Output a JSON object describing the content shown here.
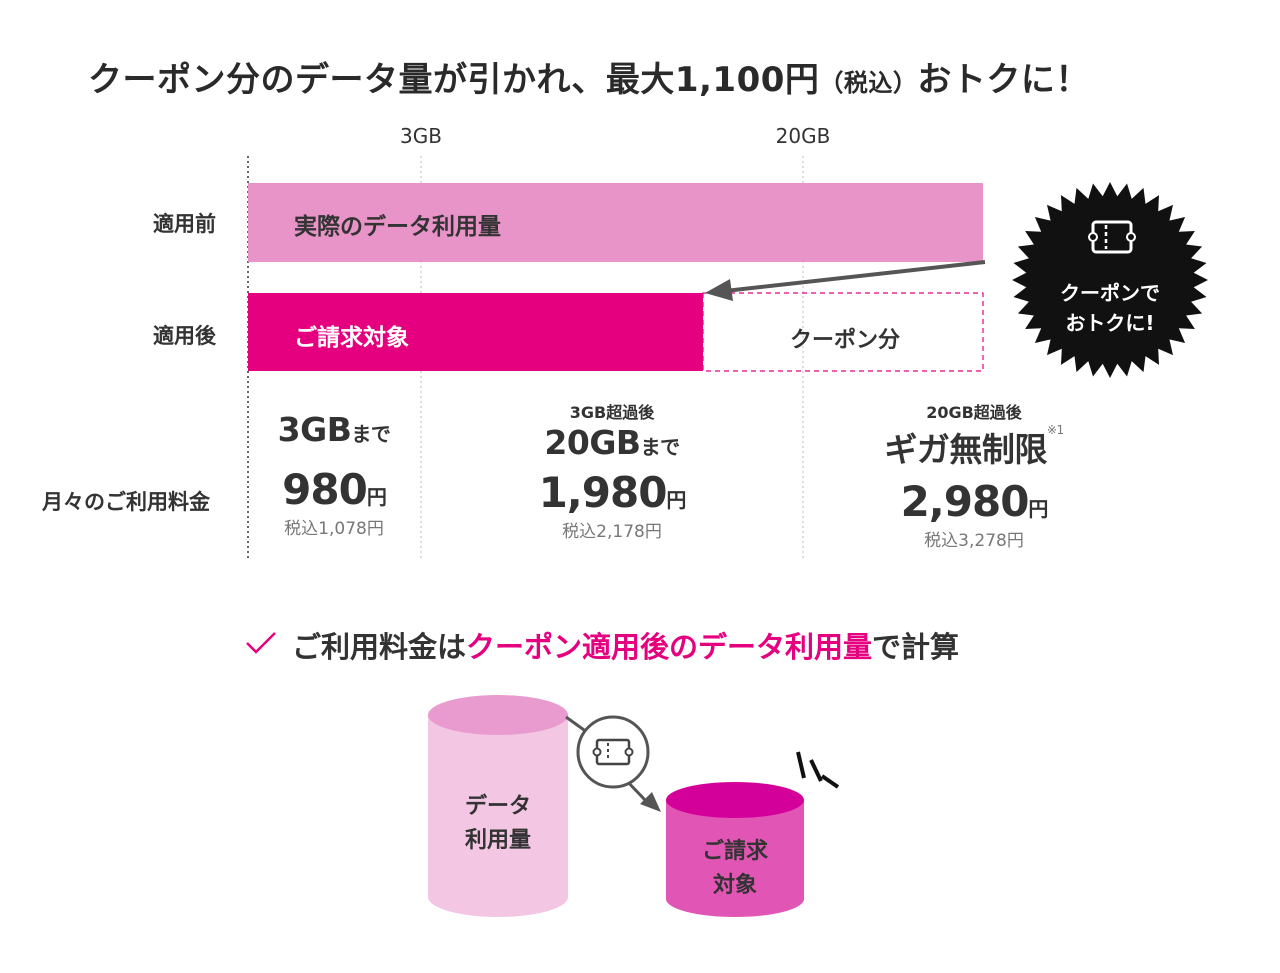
{
  "headline": {
    "main": "クーポン分のデータ量が引かれ、最大1,100円",
    "small": "（税込）",
    "tail": "おトクに！"
  },
  "axis": {
    "ticks": [
      "3GB",
      "20GB"
    ]
  },
  "rows": {
    "before": {
      "label": "適用前",
      "bar_label": "実際のデータ利用量"
    },
    "after": {
      "label": "適用後",
      "billed_label": "ご請求対象",
      "coupon_label": "クーポン分"
    },
    "monthly": {
      "label": "月々のご利用料金"
    }
  },
  "badge": {
    "line1": "クーポンで",
    "line2": "おトクに!"
  },
  "tiers": [
    {
      "pre": "",
      "main": "3GB",
      "suffix": "まで",
      "note": "",
      "price": "980",
      "yen": "円",
      "taxin": "税込1,078円"
    },
    {
      "pre": "3GB超過後",
      "main": "20GB",
      "suffix": "まで",
      "note": "",
      "price": "1,980",
      "yen": "円",
      "taxin": "税込2,178円"
    },
    {
      "pre": "20GB超過後",
      "main": "ギガ無制限",
      "suffix": "",
      "note": "※1",
      "price": "2,980",
      "yen": "円",
      "taxin": "税込3,278円"
    }
  ],
  "check": {
    "before": "ご利用料金は",
    "highlight": "クーポン適用後のデータ利用量",
    "after": "で計算"
  },
  "illustration": {
    "left_cylinder": [
      "データ",
      "利用量"
    ],
    "right_cylinder": [
      "ご請求",
      "対象"
    ]
  },
  "colors": {
    "accent": "#e4007f",
    "light_pink": "#e894c8",
    "cyl_light": "#f3c6e3",
    "cyl_light_top": "#e99acf",
    "cyl_dark": "#e155b5",
    "cyl_dark_top": "#d4009a"
  }
}
